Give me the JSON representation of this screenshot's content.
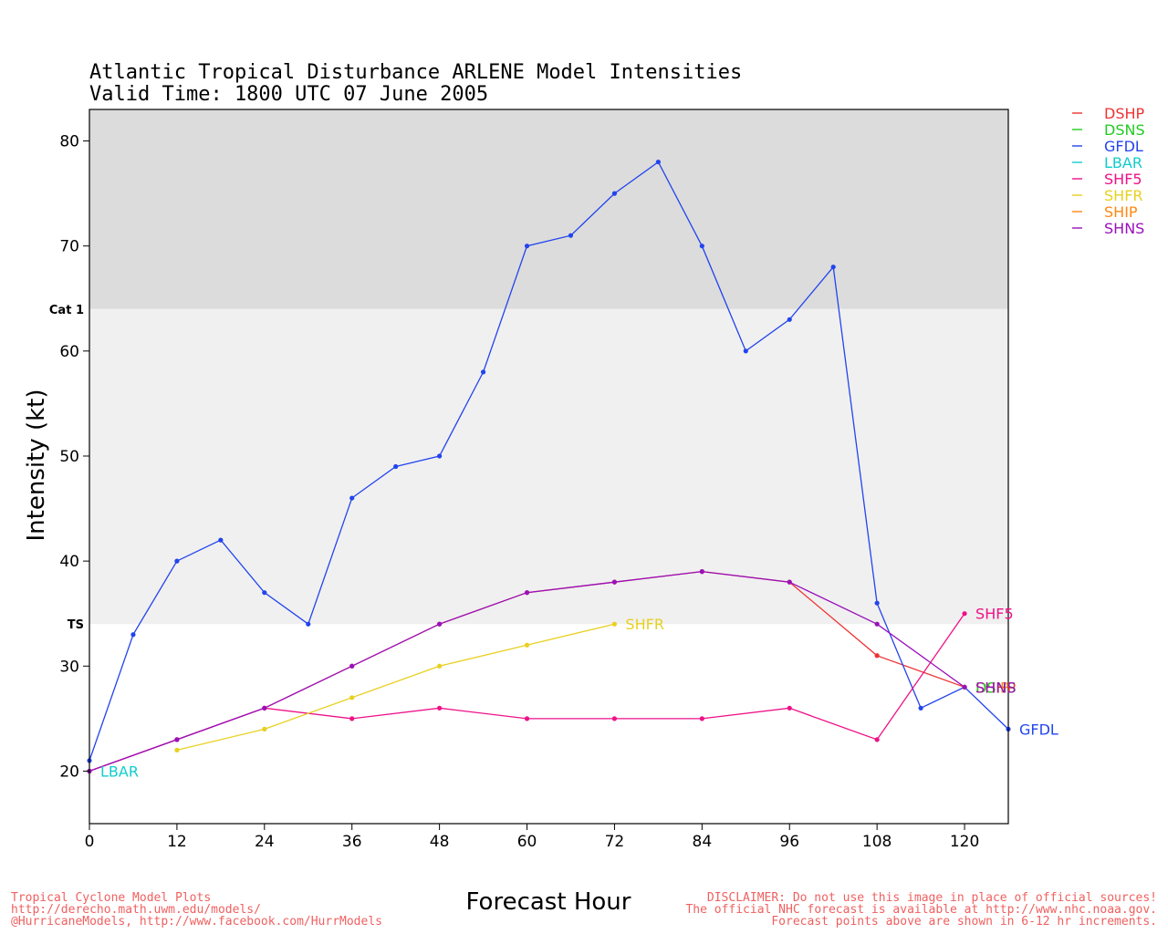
{
  "chart_data": {
    "type": "line",
    "title": "Atlantic Tropical Disturbance ARLENE Model Intensities",
    "subtitle": "Valid Time: 1800 UTC 07 June 2005",
    "xlabel": "Forecast Hour",
    "ylabel": "Intensity (kt)",
    "xlim": [
      0,
      126
    ],
    "ylim": [
      15,
      83
    ],
    "xticks": [
      0,
      12,
      24,
      36,
      48,
      60,
      72,
      84,
      96,
      108,
      120
    ],
    "yticks": [
      20,
      30,
      40,
      50,
      60,
      70,
      80
    ],
    "bands": [
      {
        "label": "TS",
        "from": 34,
        "to": 64,
        "color": "#f0f0f0"
      },
      {
        "label": "Cat 1",
        "from": 64,
        "to": 83,
        "color": "#dcdcdc"
      }
    ],
    "legend_position": "top-right (outside)",
    "series": [
      {
        "name": "DSHP",
        "color": "#ee3333",
        "x": [
          0,
          12,
          24,
          36,
          48,
          60,
          72,
          84,
          96,
          108,
          120
        ],
        "y": [
          20,
          23,
          26,
          30,
          34,
          37,
          38,
          39,
          38,
          31,
          28
        ],
        "end_label": "DSHP"
      },
      {
        "name": "DSNS",
        "color": "#22cc22",
        "x": [
          120
        ],
        "y": [
          28
        ],
        "end_label": "DSNS"
      },
      {
        "name": "GFDL",
        "color": "#2244ee",
        "x": [
          0,
          6,
          12,
          18,
          24,
          30,
          36,
          42,
          48,
          54,
          60,
          66,
          72,
          78,
          84,
          90,
          96,
          102,
          108,
          114,
          120,
          126
        ],
        "y": [
          21,
          33,
          40,
          42,
          37,
          34,
          46,
          49,
          50,
          58,
          70,
          71,
          75,
          78,
          70,
          60,
          63,
          68,
          36,
          26,
          28,
          24
        ],
        "end_label": "GFDL"
      },
      {
        "name": "LBAR",
        "color": "#11cccc",
        "x": [
          0
        ],
        "y": [
          20
        ],
        "end_label": "LBAR"
      },
      {
        "name": "SHF5",
        "color": "#ee1188",
        "x": [
          0,
          12,
          24,
          36,
          48,
          60,
          72,
          84,
          96,
          108,
          120
        ],
        "y": [
          20,
          23,
          26,
          25,
          26,
          25,
          25,
          25,
          26,
          23,
          35
        ],
        "end_label": "SHF5"
      },
      {
        "name": "SHFR",
        "color": "#e8d020",
        "x": [
          12,
          24,
          36,
          48,
          60,
          72
        ],
        "y": [
          22,
          24,
          27,
          30,
          32,
          34
        ],
        "end_label": "SHFR"
      },
      {
        "name": "SHIP",
        "color": "#ff8811",
        "x": [
          120
        ],
        "y": [
          28
        ],
        "end_label": "SHIP"
      },
      {
        "name": "SHNS",
        "color": "#9911bb",
        "x": [
          0,
          12,
          24,
          36,
          48,
          60,
          72,
          84,
          96,
          108,
          120
        ],
        "y": [
          20,
          23,
          26,
          30,
          34,
          37,
          38,
          39,
          38,
          34,
          28
        ],
        "end_label": "SHNS"
      }
    ]
  },
  "footer": {
    "left_line1": "Tropical Cyclone Model Plots",
    "left_line2": "http://derecho.math.uwm.edu/models/",
    "left_line3": "@HurricaneModels, http://www.facebook.com/HurrModels",
    "right_line1": "DISCLAIMER: Do not use this image in place of official sources!",
    "right_line2": "The official NHC forecast is available at http://www.nhc.noaa.gov.",
    "right_line3": "Forecast points above are shown in 6-12 hr increments."
  }
}
